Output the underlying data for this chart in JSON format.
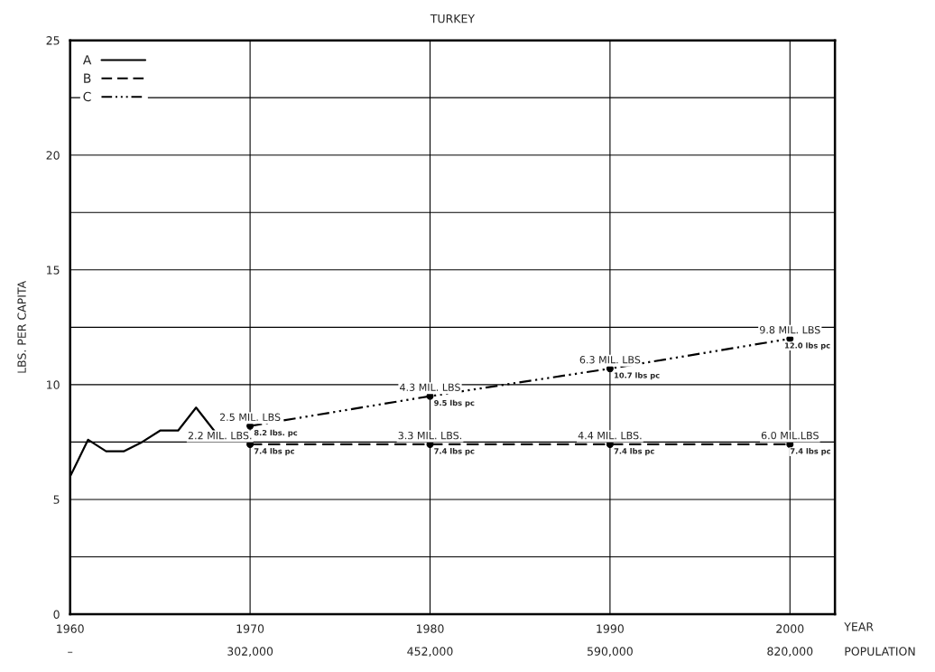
{
  "chart_data": {
    "type": "line",
    "title": "TURKEY",
    "xlabel": "YEAR",
    "ylabel": "LBS. PER CAPITA",
    "series": [
      {
        "name": "A",
        "color": "#000000",
        "line_style": "solid",
        "marker": "none",
        "x": [
          1960,
          1961,
          1962,
          1963,
          1964,
          1965,
          1966,
          1967,
          1968
        ],
        "values": [
          6.0,
          7.6,
          7.1,
          7.1,
          7.5,
          8.0,
          8.0,
          9.0,
          8.0
        ]
      },
      {
        "name": "B",
        "color": "#000000",
        "line_style": "dashed",
        "marker": "circle",
        "x": [
          1970,
          1980,
          1990,
          2000
        ],
        "values": [
          7.4,
          7.4,
          7.4,
          7.4
        ],
        "value_labels": [
          "7.4 lbs pc",
          "7.4 lbs pc",
          "7.4 lbs pc",
          "7.4 lbs pc"
        ]
      },
      {
        "name": "C",
        "color": "#000000",
        "line_style": "dotted",
        "marker": "circle",
        "x": [
          1970,
          1980,
          1990,
          2000
        ],
        "values": [
          8.2,
          9.5,
          10.7,
          12.0
        ],
        "value_labels": [
          "8.2 lbs. pc",
          "9.5 lbs pc",
          "10.7 lbs pc",
          "12.0 lbs pc"
        ]
      }
    ],
    "annotations": [
      {
        "text": "2.5 MIL. LBS",
        "x": 1970,
        "y": 8.2
      },
      {
        "text": "4.3 MIL. LBS",
        "x": 1980,
        "y": 9.5
      },
      {
        "text": "6.3 MIL. LBS",
        "x": 1990,
        "y": 10.7
      },
      {
        "text": "9.8 MIL. LBS",
        "x": 2000,
        "y": 12.0
      },
      {
        "text": "2.2 MIL. LBS.",
        "x": 1970,
        "y": 7.4
      },
      {
        "text": "3.3 MIL. LBS.",
        "x": 1980,
        "y": 7.4
      },
      {
        "text": "4.4 MIL. LBS.",
        "x": 1990,
        "y": 7.4
      },
      {
        "text": "6.0 MIL.LBS",
        "x": 2000,
        "y": 7.4
      },
      "–",
      "302,000",
      "452,000",
      "590,000",
      "820,000",
      "POPULATION"
    ],
    "xlim": [
      1960,
      2002.5
    ],
    "xticks": [
      1960,
      1970,
      1980,
      1990,
      2000
    ],
    "ylim": [
      0,
      25
    ],
    "yticks": [
      0,
      {
        "value": 2.5,
        "label": null
      },
      5,
      {
        "value": 7.5,
        "label": null
      },
      10,
      {
        "value": 12.5,
        "label": null
      },
      15,
      {
        "value": 17.5,
        "label": null
      },
      20,
      {
        "value": 22.5,
        "label": null
      },
      25
    ],
    "grid": true,
    "legend": "top left"
  }
}
